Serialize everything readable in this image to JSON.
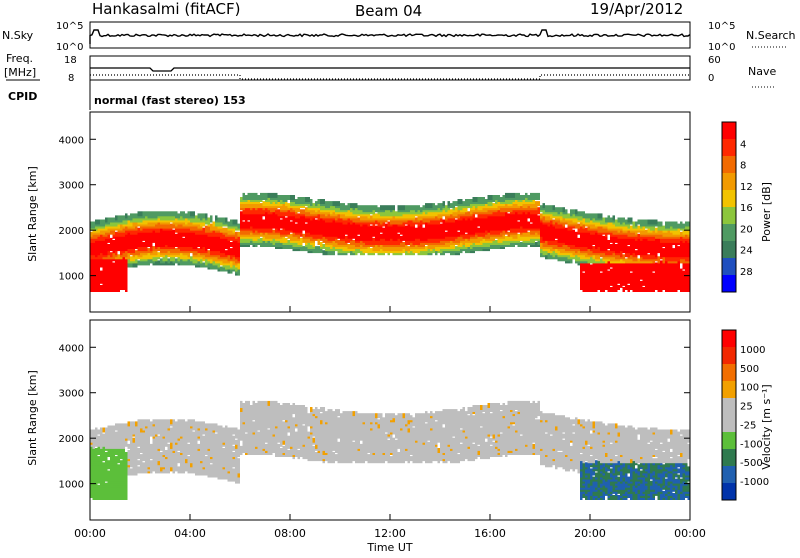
{
  "header": {
    "station": "Hankasalmi (fitACF)",
    "beam": "Beam 04",
    "date": "19/Apr/2012"
  },
  "top_panels": {
    "nsky_label": "N.Sky",
    "nsky_ticks": [
      "10^5",
      "10^0"
    ],
    "nsearch_label": "N.Search",
    "nsearch_ticks": [
      "10^5",
      "10^0"
    ],
    "freq_label": "Freq.",
    "freq_unit": "[MHz]",
    "freq_ticks": [
      "18",
      "8"
    ],
    "nave_label": "Nave",
    "nave_ticks": [
      "60",
      "0"
    ],
    "cpid_label": "CPID",
    "cpid_text": "normal (fast stereo) 153"
  },
  "colors": {
    "power_scale": [
      "#0000ff",
      "#1f4fbf",
      "#3a7d5a",
      "#4f9a62",
      "#8cc63c",
      "#f2c300",
      "#f29a00",
      "#f26a00",
      "#ff2800",
      "#ff0000"
    ],
    "velocity_scale": [
      "#0033aa",
      "#2060b0",
      "#2f7a4f",
      "#5cbf3a",
      "#bebebe",
      "#bebebe",
      "#f2a000",
      "#f26e00",
      "#f22800",
      "#ff0000"
    ]
  },
  "chart_data": [
    {
      "type": "heatmap",
      "name": "power-panel",
      "ylabel": "Slant Range [km]",
      "yticks": [
        "1000",
        "2000",
        "3000",
        "4000"
      ],
      "ylim": [
        200,
        4600
      ],
      "xlim": [
        "00:00",
        "24:00"
      ],
      "colorbar_label": "Power [dB]",
      "colorbar_ticks": [
        "4",
        "8",
        "12",
        "16",
        "20",
        "24",
        "28"
      ]
    },
    {
      "type": "heatmap",
      "name": "velocity-panel",
      "ylabel": "Slant Range [km]",
      "yticks": [
        "1000",
        "2000",
        "3000",
        "4000"
      ],
      "ylim": [
        200,
        4600
      ],
      "xlim": [
        "00:00",
        "24:00"
      ],
      "xlabel": "Time UT",
      "xticks": [
        "00:00",
        "04:00",
        "08:00",
        "12:00",
        "16:00",
        "20:00",
        "00:00"
      ],
      "colorbar_label": "Velocity [m s⁻¹]",
      "colorbar_ticks": [
        "1000",
        "500",
        "100",
        "25",
        "-25",
        "-100",
        "-500",
        "-1000"
      ]
    }
  ]
}
